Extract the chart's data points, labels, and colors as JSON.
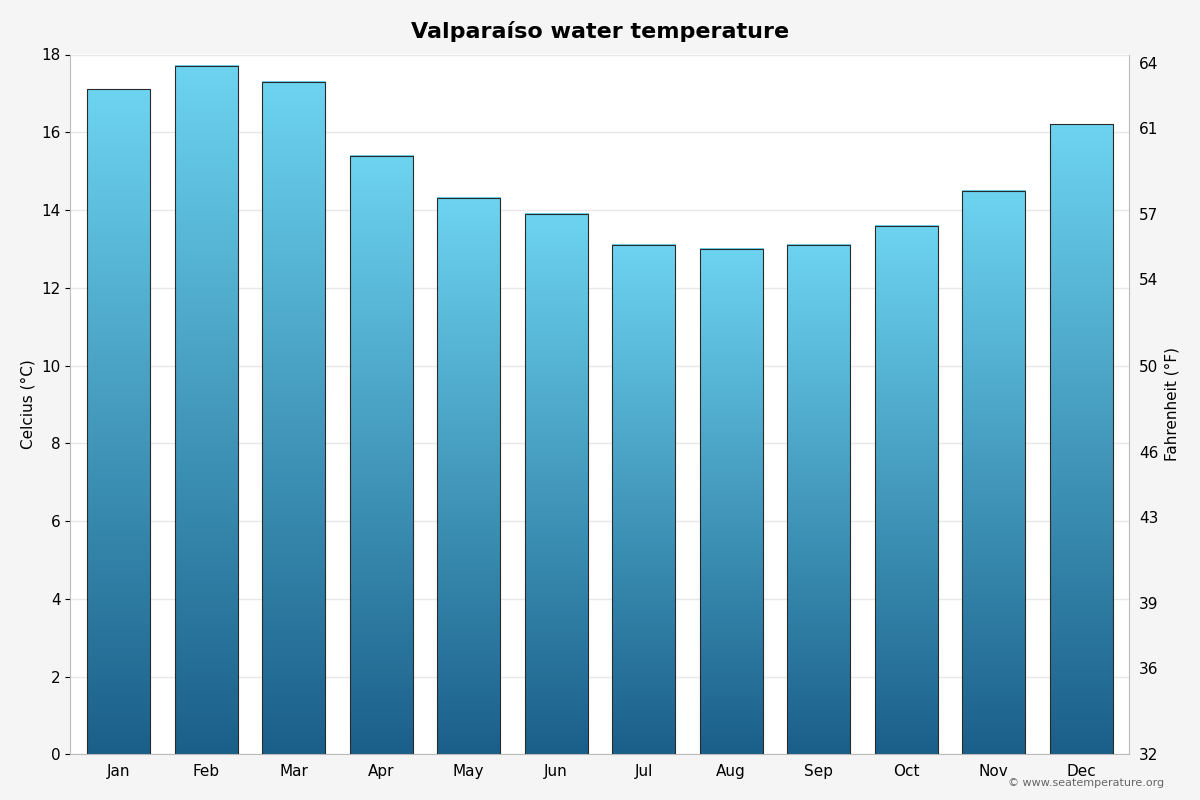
{
  "title": "Valparaíso water temperature",
  "months": [
    "Jan",
    "Feb",
    "Mar",
    "Apr",
    "May",
    "Jun",
    "Jul",
    "Aug",
    "Sep",
    "Oct",
    "Nov",
    "Dec"
  ],
  "values_c": [
    17.1,
    17.7,
    17.3,
    15.4,
    14.3,
    13.9,
    13.1,
    13.0,
    13.1,
    13.6,
    14.5,
    16.2
  ],
  "ylim_c": [
    0,
    18
  ],
  "yticks_c": [
    0,
    2,
    4,
    6,
    8,
    10,
    12,
    14,
    16,
    18
  ],
  "yticks_f": [
    32,
    36,
    39,
    43,
    46,
    50,
    54,
    57,
    61,
    64
  ],
  "ylabel_left": "Celcius (°C)",
  "ylabel_right": "Fahrenheit (°F)",
  "bar_color_top": "#6dd4f0",
  "bar_color_bottom": "#1a5f8a",
  "background_color": "#f5f5f5",
  "plot_bg_color": "#ffffff",
  "grid_color": "#e8e8e8",
  "copyright_text": "© www.seatemperature.org",
  "title_fontsize": 16,
  "axis_fontsize": 11,
  "tick_fontsize": 11,
  "bar_width": 0.72
}
